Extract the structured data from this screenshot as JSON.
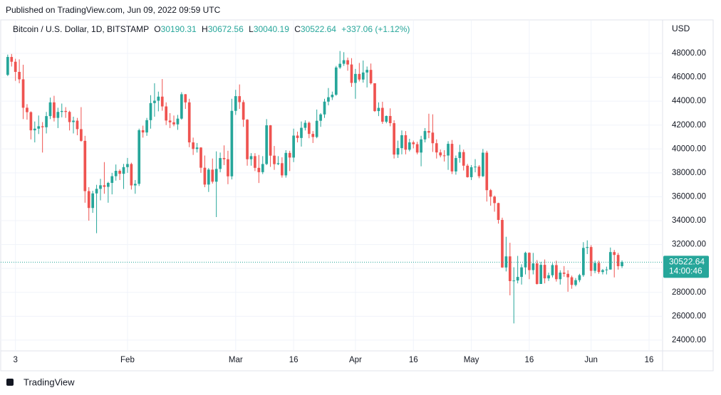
{
  "published": "Published on TradingView.com, Jun 09, 2022 09:59 UTC",
  "footer": "TradingView",
  "chart_data": {
    "type": "candlestick",
    "title": "Bitcoin / U.S. Dollar, 1D, BITSTAMP",
    "legend_labels": [
      "O",
      "H",
      "L",
      "C"
    ],
    "change": "+337.06 (+1.12%)",
    "currency": "USD",
    "countdown": "14:00:46",
    "up_color": "#26a69a",
    "down_color": "#ef5350",
    "grid": true,
    "xlim": [
      -2,
      169.5
    ],
    "xticks": [
      {
        "value": 2,
        "label": "3"
      },
      {
        "value": 31,
        "label": "Feb"
      },
      {
        "value": 59,
        "label": "Mar"
      },
      {
        "value": 74,
        "label": "16"
      },
      {
        "value": 90,
        "label": "Apr"
      },
      {
        "value": 105,
        "label": "16"
      },
      {
        "value": 120,
        "label": "May"
      },
      {
        "value": 135,
        "label": "16"
      },
      {
        "value": 151,
        "label": "Jun"
      },
      {
        "value": 166,
        "label": "16"
      }
    ],
    "ylim": [
      23100,
      50800
    ],
    "yticks": [
      {
        "value": 24000,
        "label": "24000.00"
      },
      {
        "value": 26000,
        "label": "26000.00"
      },
      {
        "value": 28000,
        "label": "28000.00"
      },
      {
        "value": 30000,
        "label": "30000.00"
      },
      {
        "value": 32000,
        "label": "32000.00"
      },
      {
        "value": 34000,
        "label": "34000.00"
      },
      {
        "value": 36000,
        "label": "36000.00"
      },
      {
        "value": 38000,
        "label": "38000.00"
      },
      {
        "value": 40000,
        "label": "40000.00"
      },
      {
        "value": 42000,
        "label": "42000.00"
      },
      {
        "value": 44000,
        "label": "44000.00"
      },
      {
        "value": 46000,
        "label": "46000.00"
      },
      {
        "value": 48000,
        "label": "48000.00"
      }
    ],
    "open": [
      46200,
      47700,
      47300,
      46450,
      45830,
      43450,
      43080,
      41560,
      41700,
      41900,
      41820,
      42750,
      43900,
      42600,
      43100,
      43180,
      43100,
      42250,
      42370,
      41660,
      40680,
      36470,
      35060,
      36280,
      36660,
      36960,
      36830,
      37160,
      37720,
      38170,
      37920,
      38480,
      38740,
      36950,
      37080,
      41570,
      41380,
      42410,
      43840,
      44040,
      44380,
      43560,
      42380,
      42230,
      42060,
      42540,
      44580,
      43900,
      40550,
      40000,
      40120,
      38430,
      37020,
      38270,
      37260,
      38330,
      39240,
      39140,
      37710,
      43190,
      44420,
      43920,
      42450,
      39140,
      39400,
      38420,
      38060,
      38740,
      41980,
      39440,
      38730,
      38810,
      37790,
      39670,
      39280,
      41120,
      40920,
      41770,
      42190,
      41260,
      41000,
      42360,
      42890,
      43960,
      44330,
      44540,
      46820,
      47130,
      47430,
      47070,
      45530,
      46280,
      45810,
      46400,
      46620,
      45500,
      43170,
      43440,
      42280,
      42760,
      42160,
      39530,
      40070,
      41150,
      39940,
      40550,
      40400,
      39700,
      40800,
      41500,
      41370,
      40480,
      39710,
      39460,
      39450,
      40430,
      38120,
      39240,
      39740,
      38600,
      37640,
      38470,
      38520,
      37720,
      39690,
      36550,
      36010,
      35470,
      34060,
      30080,
      31010,
      28940,
      28990,
      29290,
      30090,
      31310,
      29860,
      30420,
      28700,
      30300,
      29170,
      29430,
      30280,
      29100,
      29650,
      29550,
      29260,
      28620,
      29020,
      29440,
      31720,
      31790,
      29800,
      30460,
      29700,
      29860,
      29910,
      31370,
      31130,
      30190.31
    ],
    "high": [
      47900,
      47950,
      47550,
      47500,
      47050,
      43750,
      43150,
      42300,
      42800,
      42250,
      43100,
      44300,
      44450,
      43450,
      43800,
      43500,
      43200,
      42700,
      42600,
      43500,
      41100,
      36800,
      36500,
      37000,
      37500,
      38900,
      37250,
      38000,
      38700,
      38300,
      38750,
      39250,
      38850,
      37400,
      41700,
      41950,
      42600,
      44500,
      45500,
      44800,
      45850,
      43900,
      43000,
      42800,
      42850,
      44750,
      44600,
      44200,
      40950,
      40500,
      40150,
      39450,
      38400,
      39200,
      39800,
      39700,
      40300,
      39850,
      44200,
      44950,
      45400,
      44100,
      42500,
      39650,
      39650,
      39500,
      39400,
      42500,
      42000,
      40250,
      39400,
      39300,
      39900,
      39850,
      41700,
      41450,
      42300,
      42400,
      42300,
      41500,
      43300,
      43000,
      44200,
      45100,
      44800,
      46950,
      48200,
      48100,
      47650,
      47600,
      46700,
      47200,
      47400,
      46900,
      47150,
      45500,
      43900,
      43950,
      42800,
      43400,
      42400,
      40700,
      41550,
      41500,
      40850,
      40700,
      40600,
      41100,
      41750,
      42950,
      42900,
      40800,
      39950,
      39900,
      40650,
      40750,
      39450,
      40350,
      39950,
      38750,
      38650,
      39150,
      38650,
      40000,
      39850,
      36650,
      36100,
      35500,
      34250,
      32650,
      32150,
      30100,
      31050,
      30350,
      31400,
      31350,
      31300,
      30700,
      30550,
      30750,
      29650,
      30450,
      30650,
      29850,
      30200,
      29850,
      29400,
      29200,
      29550,
      32200,
      32350,
      31950,
      30650,
      30650,
      29950,
      30150,
      31750,
      31550,
      31300,
      30672.56
    ],
    "low": [
      46100,
      46900,
      45700,
      45500,
      42500,
      42450,
      40800,
      40550,
      41250,
      39700,
      41300,
      42500,
      42300,
      41750,
      42650,
      42600,
      41550,
      41300,
      41150,
      40600,
      35500,
      34000,
      34650,
      32950,
      35700,
      36250,
      35500,
      36200,
      37350,
      37400,
      36650,
      38000,
      36600,
      36250,
      36900,
      40950,
      41100,
      41700,
      42700,
      43150,
      43200,
      42000,
      41750,
      41900,
      41600,
      42450,
      43350,
      40150,
      39500,
      39700,
      38000,
      36800,
      36400,
      37100,
      34300,
      38050,
      38650,
      37050,
      37450,
      42850,
      43350,
      41850,
      38600,
      38600,
      38150,
      37150,
      37900,
      38650,
      38500,
      38250,
      38650,
      37600,
      37600,
      38150,
      38900,
      40550,
      40200,
      41550,
      40900,
      40500,
      40900,
      41850,
      42600,
      43650,
      44100,
      44450,
      46700,
      46950,
      46550,
      45200,
      44200,
      45650,
      45550,
      45150,
      45400,
      43100,
      42750,
      42100,
      42150,
      41900,
      39200,
      39250,
      39550,
      39550,
      39800,
      40050,
      39550,
      38550,
      40550,
      40900,
      39750,
      39200,
      39300,
      38950,
      38250,
      37900,
      37850,
      38850,
      38200,
      37600,
      37400,
      38050,
      37550,
      37650,
      35600,
      35250,
      34750,
      33750,
      30050,
      29750,
      27750,
      25400,
      28750,
      28650,
      29500,
      29100,
      29500,
      28650,
      28700,
      28750,
      28950,
      29250,
      28900,
      28650,
      29300,
      28050,
      28300,
      28500,
      28850,
      29300,
      31200,
      29350,
      29600,
      29550,
      29500,
      29500,
      29900,
      29250,
      29900,
      30040.19
    ],
    "close": [
      47700,
      47300,
      46450,
      45830,
      43450,
      43080,
      41560,
      41700,
      41900,
      41820,
      42750,
      43900,
      42600,
      43100,
      43180,
      43100,
      42250,
      42370,
      41660,
      40680,
      36470,
      35060,
      36280,
      36660,
      36960,
      36830,
      37160,
      37720,
      38170,
      37920,
      38480,
      38740,
      36950,
      37080,
      41570,
      41380,
      42410,
      43840,
      44040,
      44380,
      43560,
      42380,
      42230,
      42060,
      42540,
      44580,
      43900,
      40550,
      40000,
      40120,
      38430,
      37020,
      38270,
      37260,
      38330,
      39240,
      39140,
      37710,
      43190,
      44420,
      43920,
      42450,
      39140,
      39400,
      38420,
      38060,
      38740,
      41980,
      39440,
      38730,
      38810,
      37790,
      39670,
      39280,
      41120,
      40920,
      41770,
      42190,
      41260,
      41000,
      42360,
      42890,
      43960,
      44330,
      44540,
      46820,
      47130,
      47430,
      47070,
      45530,
      46280,
      45810,
      46400,
      46620,
      45500,
      43170,
      43440,
      42280,
      42760,
      42160,
      39530,
      40070,
      41150,
      39940,
      40550,
      40400,
      39700,
      40800,
      41500,
      41370,
      40480,
      39710,
      39460,
      39450,
      40430,
      38120,
      39240,
      39740,
      38600,
      37640,
      38470,
      38520,
      37720,
      39690,
      36550,
      36010,
      35470,
      34060,
      30080,
      31010,
      28940,
      28990,
      29290,
      30090,
      31310,
      29860,
      30420,
      28700,
      30300,
      29170,
      29430,
      30280,
      29100,
      29650,
      29550,
      29260,
      28620,
      29020,
      29440,
      31720,
      31790,
      29800,
      30460,
      29700,
      29860,
      29910,
      31370,
      31130,
      30190.31,
      30522.64
    ]
  }
}
